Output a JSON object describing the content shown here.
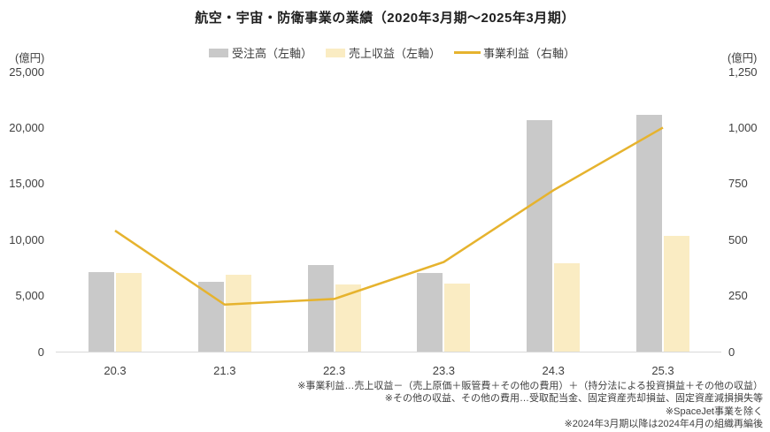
{
  "title": "航空・宇宙・防衛事業の業績（2020年3月期～2025年3月期）",
  "chart_data": {
    "type": "bar",
    "subtype": "combo-bar-line",
    "categories": [
      "20.3",
      "21.3",
      "22.3",
      "23.3",
      "24.3",
      "25.3"
    ],
    "series": [
      {
        "name": "受注高（左軸）",
        "type": "bar",
        "axis": "left",
        "color": "#c9c9c9",
        "values": [
          7100,
          6200,
          7700,
          7000,
          20700,
          21100
        ]
      },
      {
        "name": "売上収益（左軸）",
        "type": "bar",
        "axis": "left",
        "color": "#faecc3",
        "values": [
          7000,
          6900,
          6000,
          6100,
          7900,
          10300
        ]
      },
      {
        "name": "事業利益（右軸）",
        "type": "line",
        "axis": "right",
        "color": "#e6b32e",
        "values": [
          540,
          210,
          235,
          400,
          720,
          1000
        ]
      }
    ],
    "left_axis": {
      "unit": "(億円)",
      "min": 0,
      "max": 25000,
      "tick_labels": [
        "0",
        "5,000",
        "10,000",
        "15,000",
        "20,000",
        "25,000"
      ]
    },
    "right_axis": {
      "unit": "(億円)",
      "min": 0,
      "max": 1250,
      "tick_labels": [
        "0",
        "250",
        "500",
        "750",
        "1,000",
        "1,250"
      ]
    },
    "grid": false,
    "legend_position": "top"
  },
  "footnotes": [
    "※事業利益…売上収益－（売上原価＋販管費＋その他の費用）＋（持分法による投資損益＋その他の収益）",
    "※その他の収益、その他の費用…受取配当金、固定資産売却損益、固定資産減損損失等",
    "※SpaceJet事業を除く",
    "※2024年3月期以降は2024年4月の組織再編後"
  ]
}
